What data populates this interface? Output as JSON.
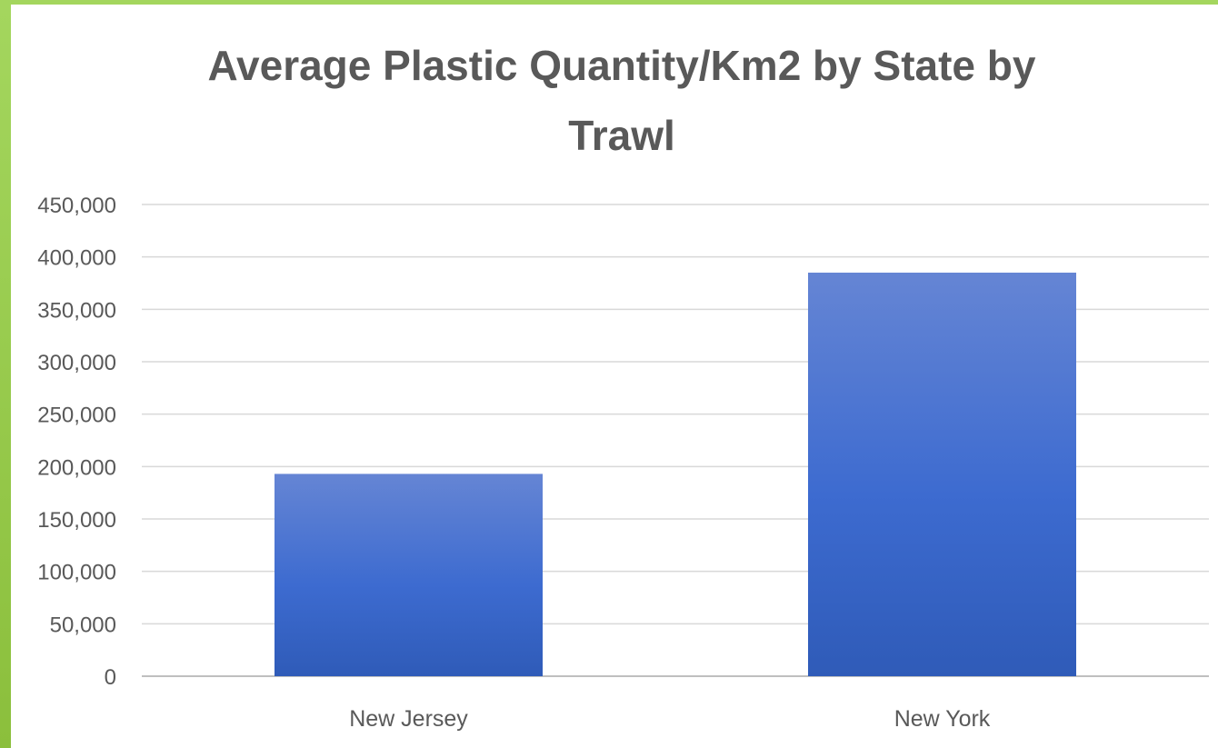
{
  "chart_data": {
    "type": "bar",
    "title": "Average Plastic Quantity/Km2 by State by Trawl",
    "title_lines": [
      "Average Plastic Quantity/Km2 by State by",
      "Trawl"
    ],
    "categories": [
      "New Jersey",
      "New York"
    ],
    "values": [
      193000,
      385000
    ],
    "ylim": [
      0,
      450000
    ],
    "yticks": [
      0,
      50000,
      100000,
      150000,
      200000,
      250000,
      300000,
      350000,
      400000,
      450000
    ],
    "ytick_labels": [
      "0",
      "50,000",
      "100,000",
      "150,000",
      "200,000",
      "250,000",
      "300,000",
      "350,000",
      "400,000",
      "450,000"
    ],
    "xlabel": "",
    "ylabel": "",
    "grid": true,
    "legend": "none",
    "bar_color": "#4472c4",
    "frame_color": "#a4d65e"
  }
}
